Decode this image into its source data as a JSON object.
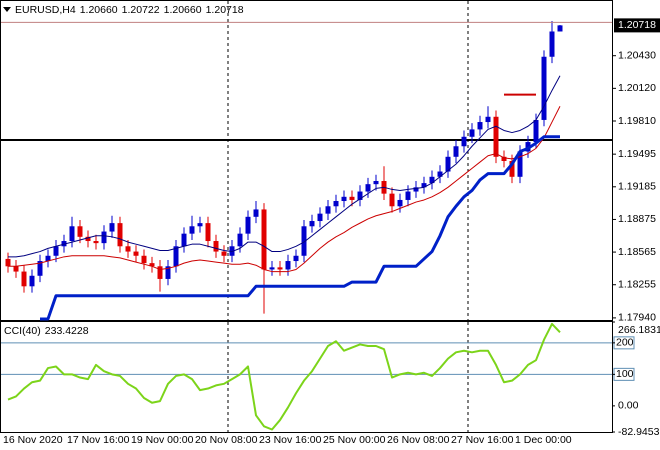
{
  "chart_data": [
    {
      "type": "candlestick",
      "symbol": "EURUSD,H4",
      "ohlc_labels": [
        "1.20660",
        "1.20722",
        "1.20660",
        "1.20718"
      ],
      "categories": [
        "16 Nov 2020",
        null,
        null,
        null,
        null,
        null,
        null,
        null,
        "17 Nov 16:00",
        null,
        null,
        null,
        null,
        null,
        null,
        null,
        "19 Nov 00:00",
        null,
        null,
        null,
        null,
        null,
        null,
        null,
        "20 Nov 08:00",
        null,
        null,
        null,
        null,
        null,
        null,
        null,
        "23 Nov 16:00",
        null,
        null,
        null,
        null,
        null,
        null,
        null,
        "25 Nov 00:00",
        null,
        null,
        null,
        null,
        null,
        null,
        null,
        "26 Nov 08:00",
        null,
        null,
        null,
        null,
        null,
        null,
        null,
        "27 Nov 16:00",
        null,
        null,
        null,
        null,
        null,
        null,
        null,
        "1 Dec 00:00",
        null,
        null,
        null,
        null,
        null
      ],
      "series": [
        {
          "type": "candlestick",
          "color": "#0000cc",
          "down_color": "#e00000",
          "values": [
            [
              1.185,
              1.1856,
              1.1837,
              1.1843
            ],
            [
              1.1843,
              1.1849,
              1.1832,
              1.1838
            ],
            [
              1.1838,
              1.1844,
              1.1818,
              1.1824
            ],
            [
              1.1824,
              1.184,
              1.1818,
              1.1834
            ],
            [
              1.1834,
              1.1854,
              1.1828,
              1.1848
            ],
            [
              1.1848,
              1.1859,
              1.1842,
              1.1853
            ],
            [
              1.1853,
              1.1868,
              1.1847,
              1.1862
            ],
            [
              1.1862,
              1.1873,
              1.1856,
              1.1867
            ],
            [
              1.1867,
              1.189,
              1.1861,
              1.1881
            ],
            [
              1.1881,
              1.1887,
              1.1865,
              1.1871
            ],
            [
              1.1871,
              1.1877,
              1.1861,
              1.1867
            ],
            [
              1.1867,
              1.1873,
              1.1859,
              1.1865
            ],
            [
              1.1865,
              1.1882,
              1.1859,
              1.1876
            ],
            [
              1.1876,
              1.1891,
              1.187,
              1.1884
            ],
            [
              1.1884,
              1.189,
              1.1856,
              1.1862
            ],
            [
              1.1862,
              1.1868,
              1.1851,
              1.1857
            ],
            [
              1.1857,
              1.1863,
              1.1847,
              1.1853
            ],
            [
              1.1853,
              1.1859,
              1.184,
              1.1846
            ],
            [
              1.1846,
              1.1852,
              1.1837,
              1.1843
            ],
            [
              1.1843,
              1.1849,
              1.1819,
              1.1831
            ],
            [
              1.1831,
              1.1849,
              1.1825,
              1.1843
            ],
            [
              1.1843,
              1.1868,
              1.1837,
              1.1862
            ],
            [
              1.1862,
              1.188,
              1.1856,
              1.1874
            ],
            [
              1.1874,
              1.1891,
              1.1868,
              1.1881
            ],
            [
              1.1881,
              1.189,
              1.1875,
              1.1884
            ],
            [
              1.1884,
              1.189,
              1.1861,
              1.1867
            ],
            [
              1.1867,
              1.1873,
              1.1851,
              1.1857
            ],
            [
              1.1857,
              1.1863,
              1.1847,
              1.1853
            ],
            [
              1.1853,
              1.1868,
              1.1847,
              1.1862
            ],
            [
              1.1862,
              1.188,
              1.1856,
              1.1874
            ],
            [
              1.1874,
              1.1896,
              1.1868,
              1.189
            ],
            [
              1.189,
              1.1905,
              1.1884,
              1.1897
            ],
            [
              1.1897,
              1.1903,
              1.1798,
              1.184
            ],
            [
              1.184,
              1.1848,
              1.1834,
              1.1842
            ],
            [
              1.1842,
              1.1848,
              1.1834,
              1.184
            ],
            [
              1.184,
              1.1854,
              1.1834,
              1.1848
            ],
            [
              1.1848,
              1.1859,
              1.1842,
              1.1853
            ],
            [
              1.1853,
              1.1887,
              1.1847,
              1.1881
            ],
            [
              1.1881,
              1.1892,
              1.1875,
              1.1886
            ],
            [
              1.1886,
              1.1899,
              1.188,
              1.1893
            ],
            [
              1.1893,
              1.1906,
              1.1887,
              1.19
            ],
            [
              1.19,
              1.1911,
              1.1894,
              1.1905
            ],
            [
              1.1905,
              1.1915,
              1.1899,
              1.1909
            ],
            [
              1.1909,
              1.1915,
              1.19,
              1.1906
            ],
            [
              1.1906,
              1.192,
              1.19,
              1.1914
            ],
            [
              1.1914,
              1.1927,
              1.1908,
              1.1921
            ],
            [
              1.1921,
              1.193,
              1.1915,
              1.1924
            ],
            [
              1.1924,
              1.1938,
              1.1906,
              1.1912
            ],
            [
              1.1912,
              1.1918,
              1.1894,
              1.19
            ],
            [
              1.19,
              1.1912,
              1.1894,
              1.1906
            ],
            [
              1.1906,
              1.192,
              1.19,
              1.1914
            ],
            [
              1.1914,
              1.1924,
              1.1908,
              1.1918
            ],
            [
              1.1918,
              1.1928,
              1.1912,
              1.1922
            ],
            [
              1.1922,
              1.1934,
              1.1916,
              1.1928
            ],
            [
              1.1928,
              1.1939,
              1.1922,
              1.1933
            ],
            [
              1.1933,
              1.1953,
              1.1927,
              1.1947
            ],
            [
              1.1947,
              1.1963,
              1.1941,
              1.1957
            ],
            [
              1.1957,
              1.1972,
              1.1951,
              1.1966
            ],
            [
              1.1966,
              1.1979,
              1.196,
              1.1973
            ],
            [
              1.1973,
              1.1986,
              1.1967,
              1.198
            ],
            [
              1.198,
              1.1995,
              1.1974,
              1.1985
            ],
            [
              1.1985,
              1.1991,
              1.1941,
              1.1947
            ],
            [
              1.1947,
              1.1953,
              1.1937,
              1.1943
            ],
            [
              1.1943,
              1.1949,
              1.1922,
              1.1928
            ],
            [
              1.1928,
              1.1958,
              1.1922,
              1.1952
            ],
            [
              1.1952,
              1.1967,
              1.1946,
              1.1961
            ],
            [
              1.1961,
              1.1988,
              1.1955,
              1.1982
            ],
            [
              1.1982,
              1.2048,
              1.1976,
              1.2042
            ],
            [
              1.2042,
              1.2076,
              1.2036,
              1.2066
            ],
            [
              1.2066,
              1.20722,
              1.2066,
              1.20718
            ]
          ]
        },
        {
          "type": "line",
          "color": "#000080",
          "width": 1,
          "values": [
            1.1852,
            1.1852,
            1.1853,
            1.1855,
            1.1857,
            1.186,
            1.1862,
            1.1864,
            1.1866,
            1.1868,
            1.187,
            1.1872,
            1.1872,
            1.1871,
            1.1869,
            1.1866,
            1.1864,
            1.1862,
            1.186,
            1.1858,
            1.1858,
            1.186,
            1.1862,
            1.1864,
            1.1864,
            1.1862,
            1.186,
            1.1858,
            1.1857,
            1.186,
            1.1866,
            1.1866,
            1.1862,
            1.1857,
            1.1857,
            1.1859,
            1.1862,
            1.1866,
            1.1872,
            1.1878,
            1.1884,
            1.189,
            1.1896,
            1.1902,
            1.1907,
            1.1912,
            1.1917,
            1.1918,
            1.1916,
            1.1915,
            1.1916,
            1.1917,
            1.1918,
            1.1922,
            1.1928,
            1.1934,
            1.194,
            1.1948,
            1.1957,
            1.1965,
            1.1973,
            1.1976,
            1.1972,
            1.197,
            1.1972,
            1.1976,
            1.1982,
            1.1995,
            1.201,
            1.2024
          ]
        },
        {
          "type": "line",
          "color": "#cc0000",
          "width": 1,
          "values": [
            1.1843,
            1.1843,
            1.1844,
            1.1845,
            1.1846,
            1.1848,
            1.185,
            1.1852,
            1.1853,
            1.1853,
            1.1853,
            1.1853,
            1.1853,
            1.1852,
            1.1851,
            1.1849,
            1.1847,
            1.1845,
            1.1843,
            1.184,
            1.1841,
            1.1843,
            1.1846,
            1.1848,
            1.1849,
            1.1848,
            1.1847,
            1.1846,
            1.1845,
            1.1845,
            1.1846,
            1.1844,
            1.184,
            1.1838,
            1.1838,
            1.1838,
            1.184,
            1.1846,
            1.1853,
            1.186,
            1.1866,
            1.1871,
            1.1875,
            1.188,
            1.1884,
            1.1888,
            1.1891,
            1.1893,
            1.1895,
            1.1898,
            1.1901,
            1.1904,
            1.1906,
            1.1909,
            1.1913,
            1.1918,
            1.1924,
            1.193,
            1.1936,
            1.1942,
            1.1948,
            1.195,
            1.1946,
            1.1945,
            1.1947,
            1.195,
            1.1955,
            1.1965,
            1.198,
            1.1995
          ]
        },
        {
          "type": "line",
          "color": "#0020c8",
          "width": 3,
          "values": [
            null,
            null,
            null,
            null,
            1.1793,
            1.1793,
            1.1815,
            1.1815,
            1.1815,
            1.1815,
            1.1815,
            1.1815,
            1.1815,
            1.1815,
            1.1815,
            1.1815,
            1.1815,
            1.1815,
            1.1815,
            1.1815,
            1.1815,
            1.1815,
            1.1815,
            1.1815,
            1.1815,
            1.1815,
            1.1815,
            1.1815,
            1.1815,
            1.1815,
            1.1815,
            1.1824,
            1.1824,
            1.1824,
            1.1824,
            1.1824,
            1.1824,
            1.1824,
            1.1824,
            1.1824,
            1.1824,
            1.1824,
            1.1824,
            1.1828,
            1.1828,
            1.1828,
            1.1828,
            1.1843,
            1.1843,
            1.1843,
            1.1843,
            1.1843,
            1.185,
            1.1857,
            1.1872,
            1.189,
            1.19,
            1.1909,
            1.1915,
            1.1925,
            1.1931,
            1.1931,
            1.1931,
            1.194,
            1.1952,
            1.1955,
            1.196,
            1.1966,
            1.1966,
            1.1966
          ]
        },
        {
          "type": "line",
          "color": "#cc0000",
          "width": 2,
          "values": [
            null,
            null,
            null,
            null,
            null,
            null,
            null,
            null,
            null,
            null,
            null,
            null,
            null,
            null,
            null,
            null,
            null,
            null,
            null,
            null,
            null,
            null,
            null,
            null,
            null,
            null,
            null,
            null,
            null,
            null,
            null,
            null,
            null,
            null,
            null,
            null,
            null,
            null,
            null,
            null,
            null,
            null,
            null,
            null,
            null,
            null,
            null,
            null,
            null,
            null,
            null,
            null,
            null,
            null,
            null,
            null,
            null,
            null,
            null,
            null,
            null,
            null,
            1.2006,
            1.2006,
            1.2006,
            1.2006,
            1.2006,
            null,
            null,
            null
          ]
        }
      ],
      "hlines": [
        {
          "value": 1.1963,
          "color": "#000000"
        }
      ],
      "ylim": [
        1.1792,
        1.2094
      ],
      "yticks": [
        {
          "value": 1.2043,
          "label": "1.20430"
        },
        {
          "value": 1.2012,
          "label": "1.20120"
        },
        {
          "value": 1.1981,
          "label": "1.19810"
        },
        {
          "value": 1.19495,
          "label": "1.19495"
        },
        {
          "value": 1.19185,
          "label": "1.19185"
        },
        {
          "value": 1.18875,
          "label": "1.18875"
        },
        {
          "value": 1.18565,
          "label": "1.18565"
        },
        {
          "value": 1.18255,
          "label": "1.18255"
        },
        {
          "value": 1.1794,
          "label": "1.17940"
        }
      ]
    },
    {
      "type": "line",
      "title": "CCI(40)",
      "series": [
        {
          "color": "#7cd41a",
          "values": [
            20,
            30,
            55,
            75,
            80,
            120,
            125,
            100,
            100,
            90,
            85,
            130,
            110,
            100,
            95,
            70,
            55,
            25,
            10,
            15,
            70,
            95,
            100,
            85,
            50,
            55,
            65,
            70,
            85,
            100,
            125,
            -30,
            -65,
            -75,
            -45,
            -5,
            40,
            80,
            110,
            150,
            190,
            205,
            175,
            185,
            195,
            190,
            190,
            180,
            90,
            100,
            105,
            100,
            105,
            95,
            120,
            150,
            170,
            175,
            170,
            175,
            175,
            130,
            75,
            80,
            100,
            130,
            145,
            210,
            260,
            233.4228
          ]
        }
      ],
      "levels": [
        200,
        100
      ],
      "ylim": [
        -82.9453,
        266.1831
      ],
      "yticks": [
        266.1831,
        200,
        100,
        {
          "value": 0,
          "label": "0.00"
        },
        -82.9453
      ]
    }
  ]
}
